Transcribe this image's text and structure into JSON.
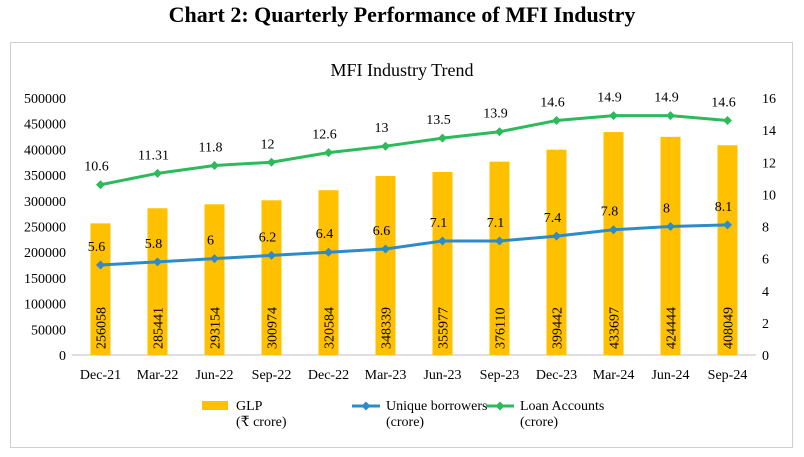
{
  "heading": "Chart 2: Quarterly Performance of MFI Industry",
  "chart_data": {
    "type": "bar",
    "title": "MFI Industry Trend",
    "categories": [
      "Dec-21",
      "Mar-22",
      "Jun-22",
      "Sep-22",
      "Dec-22",
      "Mar-23",
      "Jun-23",
      "Sep-23",
      "Dec-23",
      "Mar-24",
      "Jun-24",
      "Sep-24"
    ],
    "ylim_left": [
      0,
      500000
    ],
    "yticks_left": [
      "0",
      "50000",
      "100000",
      "150000",
      "200000",
      "250000",
      "300000",
      "350000",
      "400000",
      "450000",
      "500000"
    ],
    "ylim_right": [
      0,
      16
    ],
    "yticks_right": [
      "0",
      "2",
      "4",
      "6",
      "8",
      "10",
      "12",
      "14",
      "16"
    ],
    "grid": false,
    "legend_position": "bottom",
    "series": [
      {
        "name": "GLP",
        "unit": "(₹ crore)",
        "kind": "bar",
        "axis": "left",
        "color": "#FFC000",
        "values": [
          256058,
          285441,
          293154,
          300974,
          320584,
          348339,
          355977,
          376110,
          399442,
          433697,
          424444,
          408049
        ],
        "labels": [
          "256058",
          "285441",
          "293154",
          "300974",
          "320584",
          "348339",
          "355977",
          "376110",
          "399442",
          "433697",
          "424444",
          "408049"
        ]
      },
      {
        "name": "Unique borrowers",
        "unit": "(crore)",
        "kind": "line",
        "axis": "right",
        "color": "#2E8BC9",
        "values": [
          5.6,
          5.8,
          6,
          6.2,
          6.4,
          6.6,
          7.1,
          7.1,
          7.4,
          7.8,
          8,
          8.1
        ],
        "labels": [
          "5.6",
          "5.8",
          "6",
          "6.2",
          "6.4",
          "6.6",
          "7.1",
          "7.1",
          "7.4",
          "7.8",
          "8",
          "8.1"
        ]
      },
      {
        "name": "Loan Accounts",
        "unit": "(crore)",
        "kind": "line",
        "axis": "right",
        "color": "#2DBA5B",
        "values": [
          10.6,
          11.31,
          11.8,
          12,
          12.6,
          13,
          13.5,
          13.9,
          14.6,
          14.9,
          14.9,
          14.6
        ],
        "labels": [
          "10.6",
          "11.31",
          "11.8",
          "12",
          "12.6",
          "13",
          "13.5",
          "13.9",
          "14.6",
          "14.9",
          "14.9",
          "14.6"
        ]
      }
    ]
  }
}
